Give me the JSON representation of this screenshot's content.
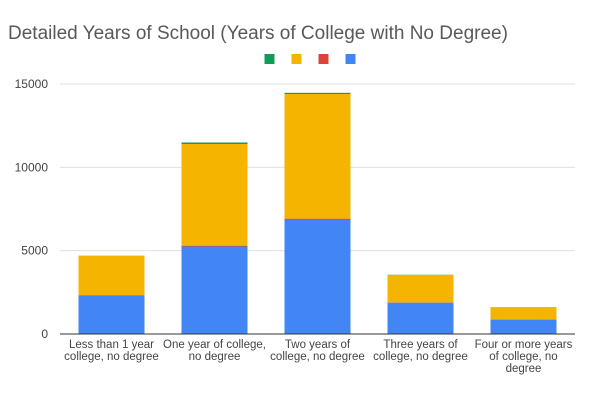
{
  "chart_data": {
    "type": "bar",
    "stacked": true,
    "title": "Detailed Years of School (Years of College with No Degree)",
    "xlabel": "",
    "ylabel": "",
    "ylim": [
      0,
      15000
    ],
    "yticks": [
      0,
      5000,
      10000,
      15000
    ],
    "grid": true,
    "legend_position": "top",
    "categories": [
      [
        "Less than 1 year",
        "college, no degree"
      ],
      [
        "One year of college,",
        "no degree"
      ],
      [
        "Two years of",
        "college, no degree"
      ],
      [
        "Three years of",
        "college, no degree"
      ],
      [
        "Four or more years",
        "of college, no",
        "degree"
      ]
    ],
    "series": [
      {
        "name": "",
        "color": "#4285f4",
        "values": [
          2280,
          5250,
          6870,
          1880,
          860
        ]
      },
      {
        "name": "",
        "color": "#db4437",
        "values": [
          30,
          50,
          50,
          20,
          10
        ]
      },
      {
        "name": "",
        "color": "#f4b400",
        "values": [
          2380,
          6100,
          7480,
          1650,
          730
        ]
      },
      {
        "name": "",
        "color": "#0f9d58",
        "values": [
          10,
          90,
          70,
          10,
          10
        ]
      }
    ],
    "legend_order": [
      3,
      2,
      1,
      0
    ]
  }
}
